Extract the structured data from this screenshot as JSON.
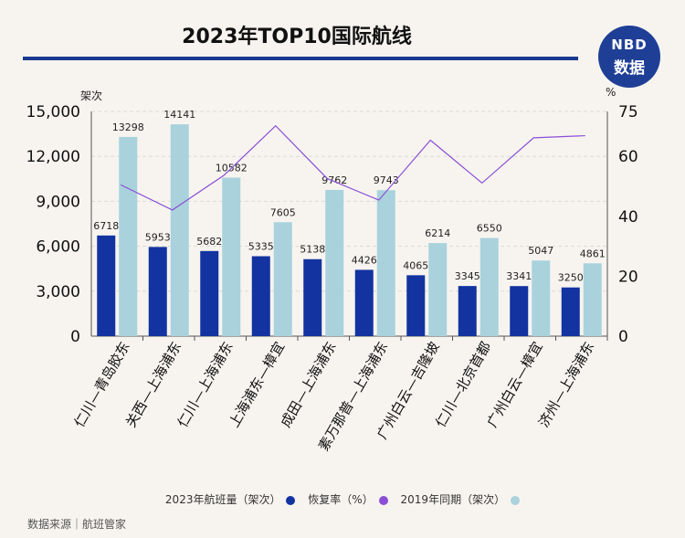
{
  "header": {
    "title": "2023年TOP10国际航线",
    "logo_top": "NBD",
    "logo_bottom": "数据"
  },
  "footer": {
    "source": "数据来源｜航班管家"
  },
  "colors": {
    "bar2023": "#1233a0",
    "bar2019": "#a9d2dd",
    "line": "#8a4fd6"
  },
  "chart_data": {
    "type": "bar",
    "categories": [
      "仁川—青岛胶东",
      "关西—上海浦东",
      "仁川—上海浦东",
      "上海浦东—樟宜",
      "成田—上海浦东",
      "素万那普—上海浦东",
      "广州白云—吉隆坡",
      "仁川—北京首都",
      "广州白云—樟宜",
      "济州—上海浦东"
    ],
    "series": [
      {
        "name": "2023年航班量（架次）",
        "axis": "left",
        "type": "bar",
        "values": [
          6718,
          5953,
          5682,
          5335,
          5138,
          4426,
          4065,
          3345,
          3341,
          3250
        ]
      },
      {
        "name": "2019年同期（架次）",
        "axis": "left",
        "type": "bar",
        "values": [
          13298,
          14141,
          10582,
          7605,
          9762,
          9743,
          6214,
          6550,
          5047,
          4861
        ]
      },
      {
        "name": "恢复率（%）",
        "axis": "right",
        "type": "line",
        "values": [
          50.5,
          42.1,
          53.7,
          70.2,
          52.6,
          45.4,
          65.4,
          51.1,
          66.2,
          66.9
        ]
      }
    ],
    "left_axis": {
      "label": "架次",
      "ylim": [
        0,
        15000
      ],
      "ticks": [
        "0",
        "3,000",
        "6,000",
        "9,000",
        "12,000",
        "15,000"
      ]
    },
    "right_axis": {
      "label": "%",
      "ylim": [
        0,
        75
      ],
      "ticks": [
        "0",
        "20",
        "40",
        "60",
        "75"
      ]
    },
    "legend": [
      {
        "label": "2023年航班量（架次）",
        "color": "#1233a0"
      },
      {
        "label": "恢复率（%）",
        "color": "#8a4fd6"
      },
      {
        "label": "2019年同期（架次）",
        "color": "#a9d2dd"
      }
    ]
  }
}
